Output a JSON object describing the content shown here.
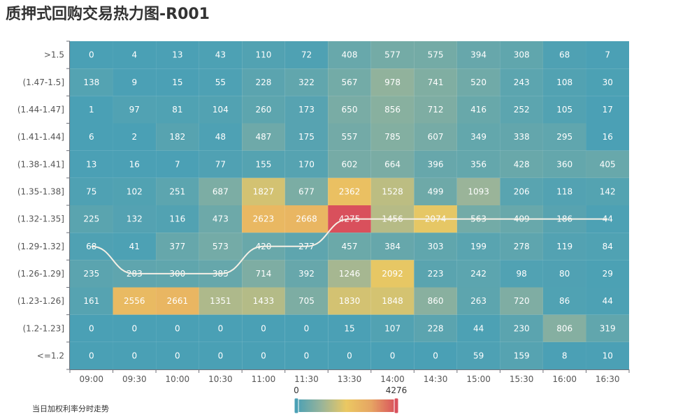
{
  "chart_data": {
    "type": "heatmap",
    "title": "质押式回购交易热力图-R001",
    "x_categories": [
      "09:00",
      "09:30",
      "10:00",
      "10:30",
      "11:00",
      "11:30",
      "13:30",
      "14:00",
      "14:30",
      "15:00",
      "15:30",
      "16:00",
      "16:30"
    ],
    "y_categories": [
      ">1.5",
      "(1.47-1.5]",
      "(1.44-1.47]",
      "(1.41-1.44]",
      "(1.38-1.41]",
      "(1.35-1.38]",
      "(1.32-1.35]",
      "(1.29-1.32]",
      "(1.26-1.29]",
      "(1.23-1.26]",
      "(1.2-1.23]",
      "<=1.2"
    ],
    "values": [
      [
        0,
        4,
        13,
        43,
        110,
        72,
        408,
        577,
        575,
        394,
        308,
        68,
        7
      ],
      [
        138,
        9,
        15,
        55,
        228,
        322,
        567,
        978,
        741,
        520,
        243,
        108,
        30
      ],
      [
        1,
        97,
        81,
        104,
        260,
        173,
        650,
        856,
        712,
        416,
        252,
        105,
        17
      ],
      [
        6,
        2,
        182,
        48,
        487,
        175,
        557,
        785,
        607,
        349,
        338,
        295,
        16
      ],
      [
        13,
        16,
        7,
        77,
        155,
        170,
        602,
        664,
        396,
        356,
        428,
        360,
        405
      ],
      [
        75,
        102,
        251,
        687,
        1827,
        677,
        2362,
        1528,
        499,
        1093,
        206,
        118,
        142
      ],
      [
        225,
        132,
        116,
        473,
        2623,
        2668,
        4275,
        1456,
        2074,
        563,
        409,
        186,
        44
      ],
      [
        68,
        41,
        377,
        573,
        420,
        277,
        457,
        384,
        303,
        199,
        278,
        119,
        84
      ],
      [
        235,
        283,
        300,
        385,
        714,
        392,
        1246,
        2092,
        223,
        242,
        98,
        80,
        29
      ],
      [
        161,
        2556,
        2661,
        1351,
        1433,
        705,
        1830,
        1848,
        860,
        263,
        720,
        86,
        44
      ],
      [
        0,
        0,
        0,
        0,
        0,
        0,
        15,
        107,
        228,
        44,
        230,
        806,
        319
      ],
      [
        0,
        0,
        0,
        0,
        0,
        0,
        0,
        0,
        0,
        59,
        159,
        8,
        10
      ]
    ],
    "trend_series": {
      "name": "当日加权利率分时走势",
      "y_categories": [
        "(1.29-1.32]",
        "(1.26-1.29]",
        "(1.26-1.29]",
        "(1.26-1.29]",
        "(1.29-1.32]",
        "(1.29-1.32]",
        "(1.32-1.35]",
        "(1.32-1.35]",
        "(1.32-1.35]",
        "(1.32-1.35]",
        "(1.32-1.35]",
        "(1.32-1.35]",
        "(1.32-1.35]"
      ],
      "color": "#f5f0e6"
    },
    "visual_map": {
      "min": 0,
      "max": 4276,
      "min_label": "0",
      "max_label": "4276",
      "colors": [
        "#4aa0b5",
        "#98b49a",
        "#ebc862",
        "#e6a463",
        "#d9505c"
      ]
    },
    "legend": {
      "position": "bottom-left"
    },
    "grid": false
  }
}
